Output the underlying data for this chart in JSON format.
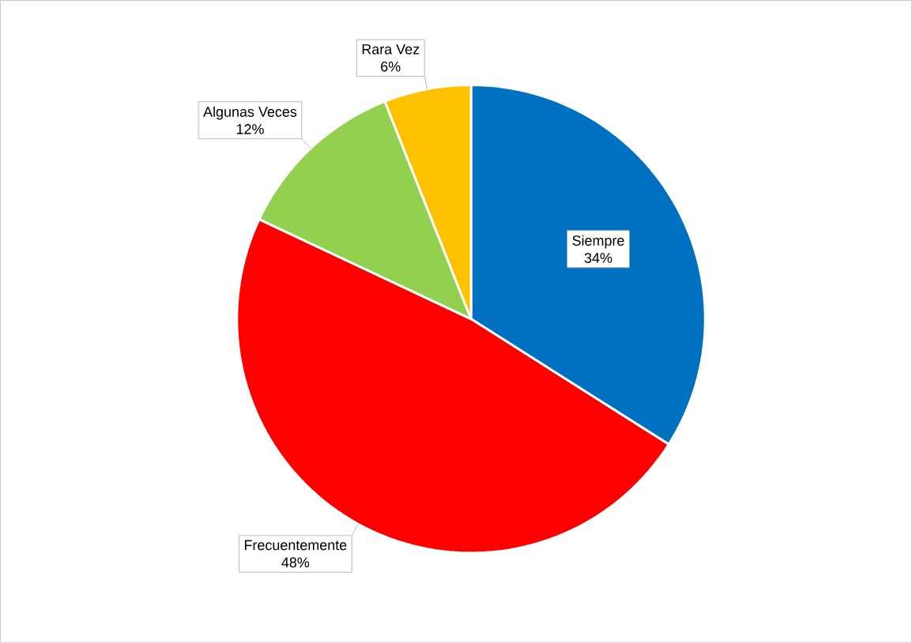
{
  "chart_data": {
    "type": "pie",
    "categories": [
      "Siempre",
      "Frecuentemente",
      "Algunas Veces",
      "Rara Vez"
    ],
    "values": [
      34,
      48,
      12,
      6
    ],
    "value_labels": [
      "34%",
      "48%",
      "12%",
      "6%"
    ],
    "colors": [
      "#0070c0",
      "#ff0000",
      "#92d050",
      "#ffc000"
    ]
  }
}
